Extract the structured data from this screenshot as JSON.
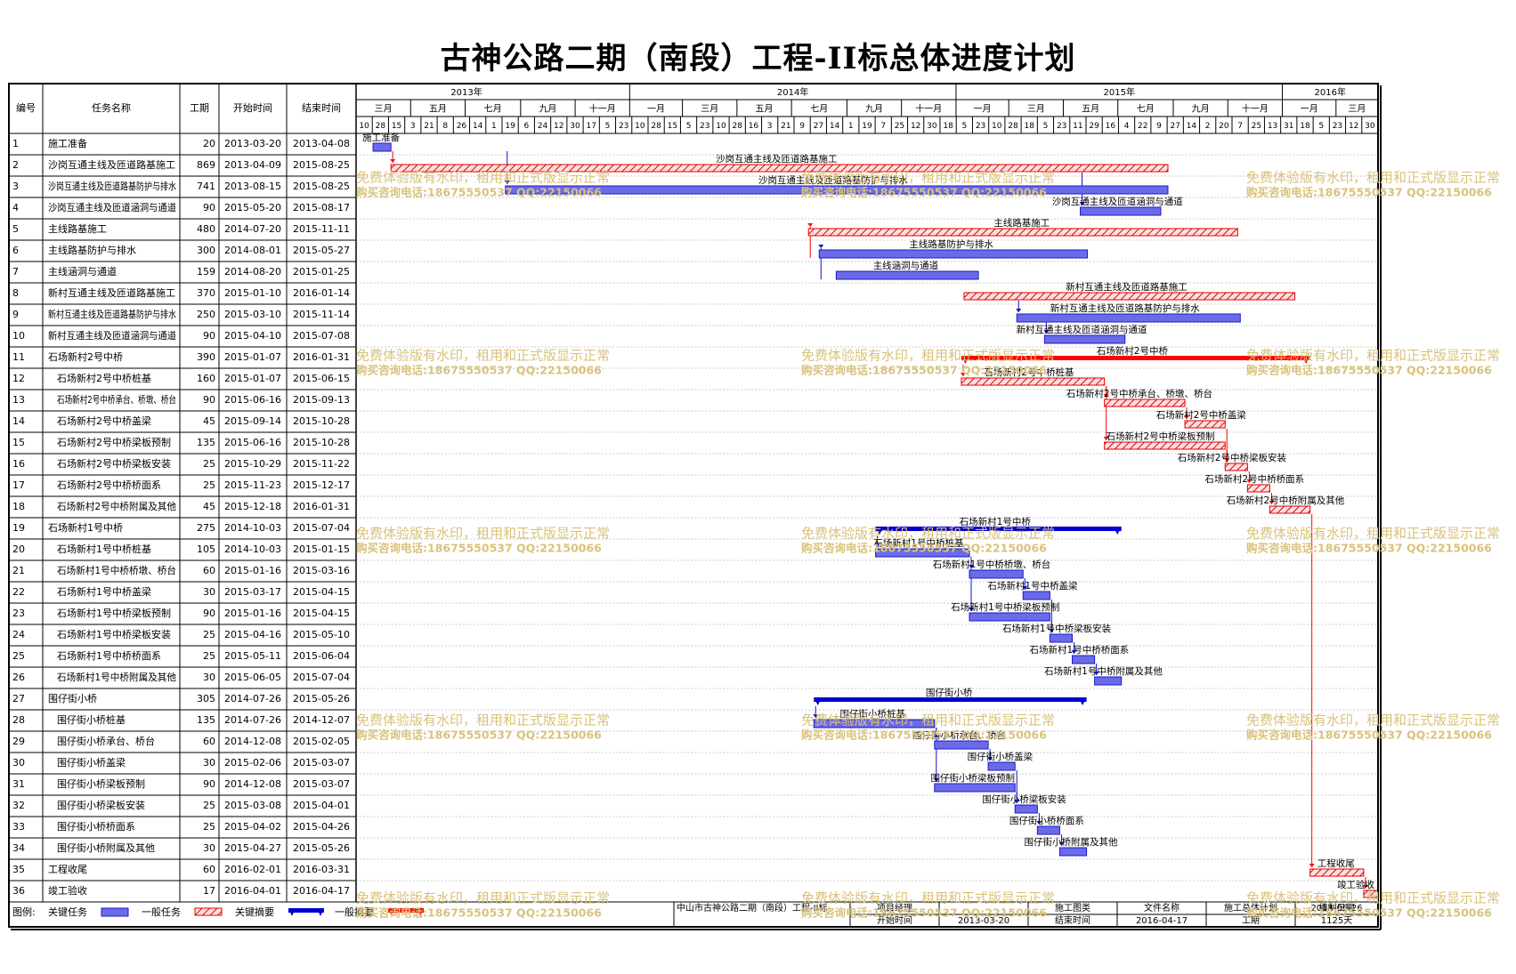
{
  "title": "古神公路二期（南段）工程-II标总体进度计划",
  "columns": {
    "no": "编号",
    "name": "任务名称",
    "duration": "工期",
    "start": "开始时间",
    "end": "结束时间"
  },
  "timeline": {
    "years": [
      {
        "label": "2013年",
        "start": "2013-01-01",
        "end": "2014-01-01"
      },
      {
        "label": "2014年",
        "start": "2014-01-01",
        "end": "2015-01-01"
      },
      {
        "label": "2015年",
        "start": "2015-01-01",
        "end": "2016-01-01"
      },
      {
        "label": "2016年",
        "start": "2016-01-01",
        "end": "2016-04-17"
      }
    ],
    "months": [
      {
        "label": "三月",
        "start": "2013-03-01",
        "end": "2013-05-01"
      },
      {
        "label": "五月",
        "start": "2013-05-01",
        "end": "2013-07-01"
      },
      {
        "label": "七月",
        "start": "2013-07-01",
        "end": "2013-09-01"
      },
      {
        "label": "九月",
        "start": "2013-09-01",
        "end": "2013-11-01"
      },
      {
        "label": "十一月",
        "start": "2013-11-01",
        "end": "2014-01-01"
      },
      {
        "label": "一月",
        "start": "2014-01-01",
        "end": "2014-03-01"
      },
      {
        "label": "三月",
        "start": "2014-03-01",
        "end": "2014-05-01"
      },
      {
        "label": "五月",
        "start": "2014-05-01",
        "end": "2014-07-01"
      },
      {
        "label": "七月",
        "start": "2014-07-01",
        "end": "2014-09-01"
      },
      {
        "label": "九月",
        "start": "2014-09-01",
        "end": "2014-11-01"
      },
      {
        "label": "十一月",
        "start": "2014-11-01",
        "end": "2015-01-01"
      },
      {
        "label": "一月",
        "start": "2015-01-01",
        "end": "2015-03-01"
      },
      {
        "label": "三月",
        "start": "2015-03-01",
        "end": "2015-05-01"
      },
      {
        "label": "五月",
        "start": "2015-05-01",
        "end": "2015-07-01"
      },
      {
        "label": "七月",
        "start": "2015-07-01",
        "end": "2015-09-01"
      },
      {
        "label": "九月",
        "start": "2015-09-01",
        "end": "2015-11-01"
      },
      {
        "label": "十一月",
        "start": "2015-11-01",
        "end": "2016-01-01"
      },
      {
        "label": "一月",
        "start": "2016-01-01",
        "end": "2016-03-01"
      },
      {
        "label": "三月",
        "start": "2016-03-01",
        "end": "2016-04-17"
      }
    ],
    "days": [
      "10",
      "28",
      "15",
      "3",
      "21",
      "8",
      "26",
      "14",
      "1",
      "19",
      "6",
      "24",
      "12",
      "30",
      "17",
      "5",
      "23",
      "10",
      "28",
      "15",
      "5",
      "23",
      "10",
      "28",
      "16",
      "3",
      "21",
      "9",
      "27",
      "14",
      "1",
      "19",
      "7",
      "25",
      "12",
      "30",
      "18",
      "5",
      "23",
      "10",
      "28",
      "18",
      "5",
      "23",
      "11",
      "29",
      "16",
      "4",
      "22",
      "9",
      "27",
      "14",
      "2",
      "20",
      "7",
      "25",
      "13",
      "31",
      "18",
      "5",
      "23",
      "12",
      "30"
    ]
  },
  "chart_data": {
    "type": "gantt",
    "title": "古神公路二期（南段）工程-II标总体进度计划",
    "x_range": [
      "2013-03-01",
      "2016-04-17"
    ],
    "tasks": [
      {
        "no": "1",
        "name": "施工准备",
        "duration": "20",
        "start": "2013-03-20",
        "end": "2013-04-08",
        "kind": "critical",
        "indent": 0,
        "label": "施工准备"
      },
      {
        "no": "2",
        "name": "沙岗互通主线及匝道路基施工",
        "duration": "869",
        "start": "2013-04-09",
        "end": "2015-08-25",
        "kind": "general",
        "indent": 0,
        "label": "沙岗互通主线及匝道路基施工"
      },
      {
        "no": "3",
        "name": "沙岗互通主线及匝道路基防护与排水",
        "duration": "741",
        "start": "2013-08-15",
        "end": "2015-08-25",
        "kind": "critical",
        "indent": 0,
        "label": "沙岗互通主线及匝道路基防护与排水"
      },
      {
        "no": "4",
        "name": "沙岗互通主线及匝道涵洞与通道",
        "duration": "90",
        "start": "2015-05-20",
        "end": "2015-08-17",
        "kind": "critical",
        "indent": 0,
        "label": "沙岗互通主线及匝道涵洞与通道"
      },
      {
        "no": "5",
        "name": "主线路基施工",
        "duration": "480",
        "start": "2014-07-20",
        "end": "2015-11-11",
        "kind": "general",
        "indent": 0,
        "label": "主线路基施工"
      },
      {
        "no": "6",
        "name": "主线路基防护与排水",
        "duration": "300",
        "start": "2014-08-01",
        "end": "2015-05-27",
        "kind": "critical",
        "indent": 0,
        "label": "主线路基防护与排水"
      },
      {
        "no": "7",
        "name": "主线涵洞与通道",
        "duration": "159",
        "start": "2014-08-20",
        "end": "2015-01-25",
        "kind": "critical",
        "indent": 0,
        "label": "主线涵洞与通道"
      },
      {
        "no": "8",
        "name": "新村互通主线及匝道路基施工",
        "duration": "370",
        "start": "2015-01-10",
        "end": "2016-01-14",
        "kind": "general",
        "indent": 0,
        "label": "新村互通主线及匝道路基施工"
      },
      {
        "no": "9",
        "name": "新村互通主线及匝道路基防护与排水",
        "duration": "250",
        "start": "2015-03-10",
        "end": "2015-11-14",
        "kind": "critical",
        "indent": 0,
        "label": "新村互通主线及匝道路基防护与排水"
      },
      {
        "no": "10",
        "name": "新村互通主线及匝道涵洞与通道",
        "duration": "90",
        "start": "2015-04-10",
        "end": "2015-07-08",
        "kind": "critical",
        "indent": 0,
        "label": "新村互通主线及匝道涵洞与通道"
      },
      {
        "no": "11",
        "name": "石场新村2号中桥",
        "duration": "390",
        "start": "2015-01-07",
        "end": "2016-01-31",
        "kind": "summary-general",
        "indent": 0,
        "label": "石场新村2号中桥"
      },
      {
        "no": "12",
        "name": "石场新村2号中桥桩基",
        "duration": "160",
        "start": "2015-01-07",
        "end": "2015-06-15",
        "kind": "general",
        "indent": 1,
        "label": "石场新村2号中桥桩基"
      },
      {
        "no": "13",
        "name": "石场新村2号中桥承台、桥墩、桥台",
        "duration": "90",
        "start": "2015-06-16",
        "end": "2015-09-13",
        "kind": "general",
        "indent": 1,
        "label": "石场新村2号中桥承台、桥墩、桥台"
      },
      {
        "no": "14",
        "name": "石场新村2号中桥盖梁",
        "duration": "45",
        "start": "2015-09-14",
        "end": "2015-10-28",
        "kind": "general",
        "indent": 1,
        "label": "石场新村2号中桥盖梁"
      },
      {
        "no": "15",
        "name": "石场新村2号中桥梁板预制",
        "duration": "135",
        "start": "2015-06-16",
        "end": "2015-10-28",
        "kind": "general",
        "indent": 1,
        "label": "石场新村2号中桥梁板预制"
      },
      {
        "no": "16",
        "name": "石场新村2号中桥梁板安装",
        "duration": "25",
        "start": "2015-10-29",
        "end": "2015-11-22",
        "kind": "general",
        "indent": 1,
        "label": "石场新村2号中桥梁板安装"
      },
      {
        "no": "17",
        "name": "石场新村2号中桥桥面系",
        "duration": "25",
        "start": "2015-11-23",
        "end": "2015-12-17",
        "kind": "general",
        "indent": 1,
        "label": "石场新村2号中桥桥面系"
      },
      {
        "no": "18",
        "name": "石场新村2号中桥附属及其他",
        "duration": "45",
        "start": "2015-12-18",
        "end": "2016-01-31",
        "kind": "general",
        "indent": 1,
        "label": "石场新村2号中桥附属及其他"
      },
      {
        "no": "19",
        "name": "石场新村1号中桥",
        "duration": "275",
        "start": "2014-10-03",
        "end": "2015-07-04",
        "kind": "summary-critical",
        "indent": 0,
        "label": "石场新村1号中桥"
      },
      {
        "no": "20",
        "name": "石场新村1号中桥桩基",
        "duration": "105",
        "start": "2014-10-03",
        "end": "2015-01-15",
        "kind": "critical",
        "indent": 1,
        "label": "石场新村1号中桥桩基"
      },
      {
        "no": "21",
        "name": "石场新村1号中桥桥墩、桥台",
        "duration": "60",
        "start": "2015-01-16",
        "end": "2015-03-16",
        "kind": "critical",
        "indent": 1,
        "label": "石场新村1号中桥桥墩、桥台"
      },
      {
        "no": "22",
        "name": "石场新村1号中桥盖梁",
        "duration": "30",
        "start": "2015-03-17",
        "end": "2015-04-15",
        "kind": "critical",
        "indent": 1,
        "label": "石场新村1号中桥盖梁"
      },
      {
        "no": "23",
        "name": "石场新村1号中桥梁板预制",
        "duration": "90",
        "start": "2015-01-16",
        "end": "2015-04-15",
        "kind": "critical",
        "indent": 1,
        "label": "石场新村1号中桥梁板预制"
      },
      {
        "no": "24",
        "name": "石场新村1号中桥梁板安装",
        "duration": "25",
        "start": "2015-04-16",
        "end": "2015-05-10",
        "kind": "critical",
        "indent": 1,
        "label": "石场新村1号中桥梁板安装"
      },
      {
        "no": "25",
        "name": "石场新村1号中桥桥面系",
        "duration": "25",
        "start": "2015-05-11",
        "end": "2015-06-04",
        "kind": "critical",
        "indent": 1,
        "label": "石场新村1号中桥桥面系"
      },
      {
        "no": "26",
        "name": "石场新村1号中桥附属及其他",
        "duration": "30",
        "start": "2015-06-05",
        "end": "2015-07-04",
        "kind": "critical",
        "indent": 1,
        "label": "石场新村1号中桥附属及其他"
      },
      {
        "no": "27",
        "name": "围仔街小桥",
        "duration": "305",
        "start": "2014-07-26",
        "end": "2015-05-26",
        "kind": "summary-critical",
        "indent": 0,
        "label": "围仔街小桥"
      },
      {
        "no": "28",
        "name": "围仔街小桥桩基",
        "duration": "135",
        "start": "2014-07-26",
        "end": "2014-12-07",
        "kind": "critical",
        "indent": 1,
        "label": "围仔街小桥桩基"
      },
      {
        "no": "29",
        "name": "围仔街小桥承台、桥台",
        "duration": "60",
        "start": "2014-12-08",
        "end": "2015-02-05",
        "kind": "critical",
        "indent": 1,
        "label": "围仔街小桥承台、桥台"
      },
      {
        "no": "30",
        "name": "围仔街小桥盖梁",
        "duration": "30",
        "start": "2015-02-06",
        "end": "2015-03-07",
        "kind": "critical",
        "indent": 1,
        "label": "围仔街小桥盖梁"
      },
      {
        "no": "31",
        "name": "围仔街小桥梁板预制",
        "duration": "90",
        "start": "2014-12-08",
        "end": "2015-03-07",
        "kind": "critical",
        "indent": 1,
        "label": "围仔街小桥梁板预制"
      },
      {
        "no": "32",
        "name": "围仔街小桥梁板安装",
        "duration": "25",
        "start": "2015-03-08",
        "end": "2015-04-01",
        "kind": "critical",
        "indent": 1,
        "label": "围仔街小桥梁板安装"
      },
      {
        "no": "33",
        "name": "围仔街小桥桥面系",
        "duration": "25",
        "start": "2015-04-02",
        "end": "2015-04-26",
        "kind": "critical",
        "indent": 1,
        "label": "围仔街小桥桥面系"
      },
      {
        "no": "34",
        "name": "围仔街小桥附属及其他",
        "duration": "30",
        "start": "2015-04-27",
        "end": "2015-05-26",
        "kind": "critical",
        "indent": 1,
        "label": "围仔街小桥附属及其他"
      },
      {
        "no": "35",
        "name": "工程收尾",
        "duration": "60",
        "start": "2016-02-01",
        "end": "2016-03-31",
        "kind": "general",
        "indent": 0,
        "label": "工程收尾"
      },
      {
        "no": "36",
        "name": "竣工验收",
        "duration": "17",
        "start": "2016-04-01",
        "end": "2016-04-17",
        "kind": "general",
        "indent": 0,
        "label": "竣工验收"
      }
    ],
    "links": [
      [
        1,
        2
      ],
      [
        1,
        3
      ],
      [
        2,
        4
      ],
      [
        6,
        5
      ],
      [
        7,
        6
      ],
      [
        8,
        9
      ],
      [
        9,
        10
      ],
      [
        11,
        12
      ],
      [
        12,
        13
      ],
      [
        13,
        14
      ],
      [
        12,
        15
      ],
      [
        14,
        16
      ],
      [
        15,
        16
      ],
      [
        16,
        17
      ],
      [
        17,
        18
      ],
      [
        19,
        20
      ],
      [
        20,
        21
      ],
      [
        21,
        22
      ],
      [
        20,
        23
      ],
      [
        22,
        24
      ],
      [
        23,
        24
      ],
      [
        24,
        25
      ],
      [
        25,
        26
      ],
      [
        27,
        28
      ],
      [
        28,
        29
      ],
      [
        29,
        30
      ],
      [
        28,
        31
      ],
      [
        30,
        32
      ],
      [
        31,
        32
      ],
      [
        32,
        33
      ],
      [
        33,
        34
      ],
      [
        18,
        35
      ],
      [
        35,
        36
      ]
    ]
  },
  "legend": {
    "label": "图例:",
    "items": [
      {
        "label": "关键任务",
        "kind": "critical"
      },
      {
        "label": "一般任务",
        "kind": "general"
      },
      {
        "label": "关键摘要",
        "kind": "summary-critical"
      },
      {
        "label": "一般摘要",
        "kind": "summary-general"
      }
    ]
  },
  "footer": {
    "project": "中山市古神公路二期（南段）工程-II标",
    "manager_label": "项目经理",
    "manager_value": "",
    "start_label": "开始时间",
    "start_value": "2013-03-20",
    "drawing_label": "施工图类",
    "drawing_value": "",
    "filename_label": "文件名称",
    "filename_value": "施工总体计划",
    "end_label": "结束时间",
    "end_value": "2016-04-17",
    "date_label": "编制日期",
    "date_value": "2014-06-26",
    "duration_label": "工期",
    "duration_value": "1125天"
  },
  "watermark": {
    "line1": "免费体验版有水印，租用和正式版显示正常",
    "line2": "购买咨询电话:18675550537 QQ:22150066"
  },
  "colors": {
    "critical_fill": "#6b6be8",
    "critical_edge": "#1a1acc",
    "general_stroke": "#e00000",
    "general_fill": "#ffe0e0",
    "summary_critical": "#0000d0",
    "summary_general": "#ff0000",
    "link": "#1010cc",
    "watermark": "#d9c27a",
    "grid": "#555555"
  }
}
